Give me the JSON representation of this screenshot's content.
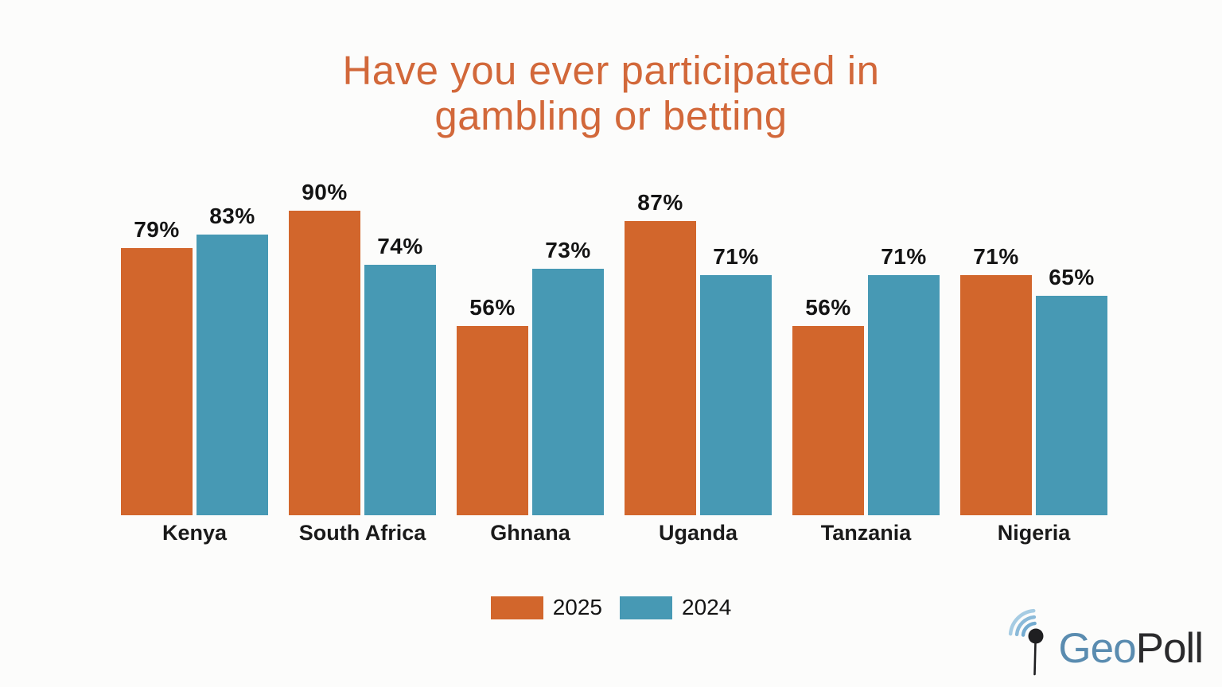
{
  "title": {
    "line1": "Have you ever participated in",
    "line2": "gambling or betting"
  },
  "chart_data": {
    "type": "bar",
    "title": "Have you ever participated in gambling or betting",
    "categories": [
      "Kenya",
      "South Africa",
      "Ghnana",
      "Uganda",
      "Tanzania",
      "Nigeria"
    ],
    "series": [
      {
        "name": "2025",
        "color": "#D2662C",
        "values": [
          79,
          90,
          56,
          87,
          56,
          71
        ]
      },
      {
        "name": "2024",
        "color": "#4799B4",
        "values": [
          83,
          74,
          73,
          71,
          71,
          65
        ]
      }
    ],
    "value_suffix": "%",
    "xlabel": "",
    "ylabel": "",
    "ylim": [
      0,
      100
    ],
    "grid": false,
    "data_labels": true,
    "legend_position": "bottom-center"
  },
  "logo": {
    "text_blue": "Geo",
    "text_dark": "Poll"
  },
  "colors": {
    "background": "#FCFCFB",
    "title": "#D2683A",
    "bar_2025": "#D2662C",
    "bar_2024": "#4799B4",
    "data_label": "#141414",
    "logo_blue": "#5A8CB0",
    "logo_dark": "#2A2A2C"
  }
}
